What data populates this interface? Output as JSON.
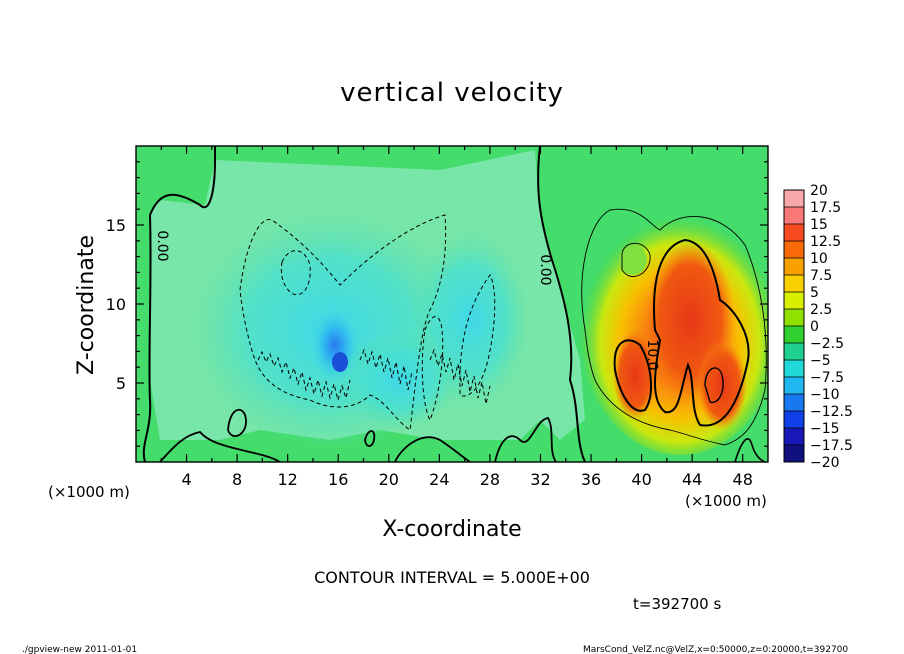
{
  "chart_data": {
    "type": "heatmap",
    "title": "vertical velocity",
    "xlabel": "X-coordinate",
    "ylabel": "Z-coordinate",
    "x_unit_left": "(×1000 m)",
    "x_unit_right": "(×1000 m)",
    "xlim": [
      0,
      50
    ],
    "ylim": [
      0,
      20
    ],
    "x_ticks": [
      4,
      8,
      12,
      16,
      20,
      24,
      28,
      32,
      36,
      40,
      44,
      48
    ],
    "y_ticks": [
      5,
      10,
      15
    ],
    "colorbar_labels": [
      "20",
      "17.5",
      "15",
      "12.5",
      "10",
      "7.5",
      "5",
      "2.5",
      "0",
      "−2.5",
      "−5",
      "−7.5",
      "−10",
      "−12.5",
      "−15",
      "−17.5",
      "−20"
    ],
    "colorbar_colors": [
      "#f8a8a8",
      "#f87878",
      "#f84a20",
      "#f86a08",
      "#f8a000",
      "#f8d000",
      "#d8f000",
      "#90e000",
      "#30d030",
      "#20d090",
      "#20d8d8",
      "#20b8f0",
      "#1878f0",
      "#1040e8",
      "#1818b8",
      "#101080",
      "#6018a8"
    ],
    "contour_labels": [
      "0.00",
      "0.00",
      "10.0"
    ],
    "contour_interval": "CONTOUR INTERVAL = 5.000E+00",
    "time_label": "t=392700 s",
    "grid": false,
    "legend": "right"
  },
  "footer": {
    "left": "./gpview-new  2011-01-01",
    "right": "MarsCond_VelZ.nc@VelZ,x=0:50000,z=0:20000,t=392700"
  }
}
